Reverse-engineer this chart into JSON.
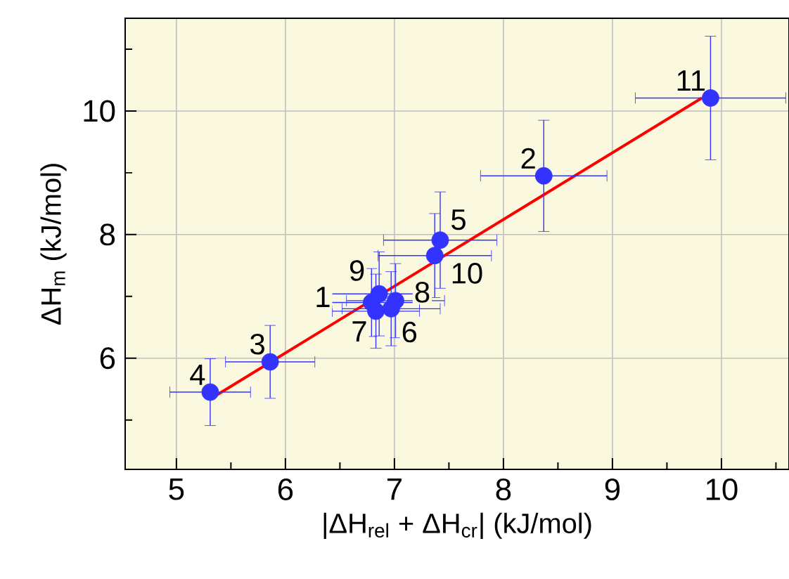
{
  "chart_data": {
    "type": "scatter",
    "xlabel": "|ΔH$_{rel}$ + ΔH$_{cr}$| (kJ/mol)",
    "ylabel": "ΔH$_{m}$ (kJ/mol)",
    "series": [
      {
        "color": "#3333ff",
        "x": [
          5.31,
          5.86,
          8.37,
          9.9,
          7.42,
          7.37,
          6.86,
          6.79,
          7.01,
          6.83,
          6.97
        ],
        "values": [
          5.45,
          5.94,
          8.95,
          10.21,
          7.91,
          7.66,
          7.04,
          6.9,
          6.93,
          6.76,
          6.8
        ],
        "xerrors": [
          0.37,
          0.41,
          0.58,
          0.69,
          0.52,
          0.52,
          0.45,
          0.44,
          0.45,
          0.4,
          0.45
        ],
        "errors": [
          0.54,
          0.59,
          0.9,
          1.0,
          0.78,
          0.68,
          0.68,
          0.55,
          0.6,
          0.6,
          0.6
        ]
      },
      {
        "type": "line",
        "color": "#ff0000",
        "x": [
          5.33,
          9.82
        ],
        "values": [
          5.36,
          10.21
        ]
      }
    ],
    "line_style": "solid",
    "xlim": [
      4.53,
      10.62
    ],
    "ylim": [
      4.2,
      11.5
    ],
    "xticks": [
      5,
      {
        "value": 5.5,
        "label": null
      },
      6,
      {
        "value": 6.5,
        "label": null
      },
      7,
      {
        "value": 7.5,
        "label": null
      },
      8,
      {
        "value": 8.5,
        "label": null
      },
      9,
      {
        "value": 9.5,
        "label": null
      },
      10,
      {
        "value": 10.5,
        "label": null
      }
    ],
    "yticks": [
      {
        "value": 5,
        "label": null
      },
      6,
      {
        "value": 7,
        "label": null
      },
      8,
      {
        "value": 9,
        "label": null
      },
      10,
      {
        "value": 11,
        "label": null
      }
    ],
    "grid": true,
    "annotations": [
      {
        "text": "4",
        "x": 5.31,
        "y": 5.45
      },
      {
        "text": "3",
        "x": 5.86,
        "y": 5.94
      },
      {
        "text": "2",
        "x": 8.37,
        "y": 8.95
      },
      {
        "text": "11",
        "x": 9.9,
        "y": 10.21
      },
      {
        "text": "5",
        "x": 7.42,
        "y": 7.91
      },
      {
        "text": "10",
        "x": 7.37,
        "y": 7.66
      },
      {
        "text": "9",
        "x": 6.85,
        "y": 7.04
      },
      {
        "text": "1",
        "x": 6.82,
        "y": 6.9
      },
      {
        "text": "8",
        "x": 7.01,
        "y": 6.93
      },
      {
        "text": "7",
        "x": 6.82,
        "y": 6.76
      },
      {
        "text": "6",
        "x": 6.97,
        "y": 6.8
      }
    ]
  }
}
